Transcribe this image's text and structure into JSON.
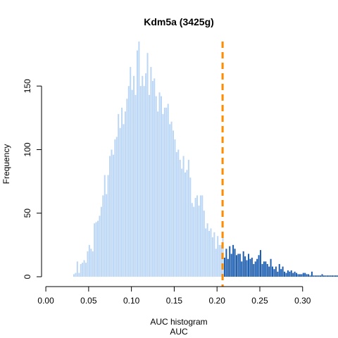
{
  "chart_data": {
    "type": "bar",
    "title": "Kdm5a (3425g)",
    "xlabel": "AUC histogram",
    "xlabel2": "AUC",
    "ylabel": "Frequency",
    "xlim": [
      -0.005,
      0.315
    ],
    "ylim": [
      0,
      185
    ],
    "x_ticks": [
      0.0,
      0.05,
      0.1,
      0.15,
      0.2,
      0.25,
      0.3
    ],
    "x_tick_labels": [
      "0.00",
      "0.05",
      "0.10",
      "0.15",
      "0.20",
      "0.25",
      "0.30"
    ],
    "y_ticks": [
      0,
      50,
      100,
      150
    ],
    "y_tick_labels": [
      "0",
      "50",
      "100",
      "150"
    ],
    "bin_width": 0.002,
    "threshold": 0.2065,
    "colors": {
      "below_threshold": "#bcd7f5",
      "above_threshold": "#1f5fb0",
      "threshold_line": "#ff8c00"
    },
    "bins_start": 0.032,
    "frequencies": [
      2,
      3,
      12,
      3,
      10,
      11,
      13,
      11,
      20,
      25,
      22,
      20,
      42,
      43,
      44,
      48,
      55,
      64,
      80,
      65,
      80,
      95,
      100,
      96,
      108,
      110,
      128,
      117,
      133,
      120,
      130,
      140,
      150,
      165,
      147,
      158,
      143,
      178,
      185,
      150,
      158,
      150,
      160,
      176,
      143,
      165,
      154,
      156,
      142,
      130,
      145,
      142,
      128,
      133,
      133,
      136,
      120,
      122,
      115,
      108,
      98,
      100,
      92,
      85,
      95,
      82,
      84,
      92,
      78,
      58,
      55,
      62,
      64,
      56,
      64,
      64,
      52,
      38,
      42,
      36,
      38,
      31,
      35,
      22,
      32,
      25,
      25,
      32,
      15,
      22,
      14,
      24,
      18,
      25,
      22,
      17,
      18,
      18,
      12,
      20,
      16,
      13,
      18,
      14,
      15,
      10,
      12,
      14,
      17,
      21,
      10,
      12,
      12,
      10,
      8,
      14,
      8,
      6,
      8,
      4,
      10,
      6,
      8,
      4,
      3,
      5,
      4,
      5,
      3,
      4,
      3,
      2,
      2,
      2,
      3,
      3,
      2,
      2,
      1,
      4,
      1,
      1,
      1,
      1,
      1,
      2,
      1,
      1,
      1,
      1,
      1,
      1,
      1,
      1,
      1,
      1,
      2,
      1,
      1,
      1
    ]
  }
}
